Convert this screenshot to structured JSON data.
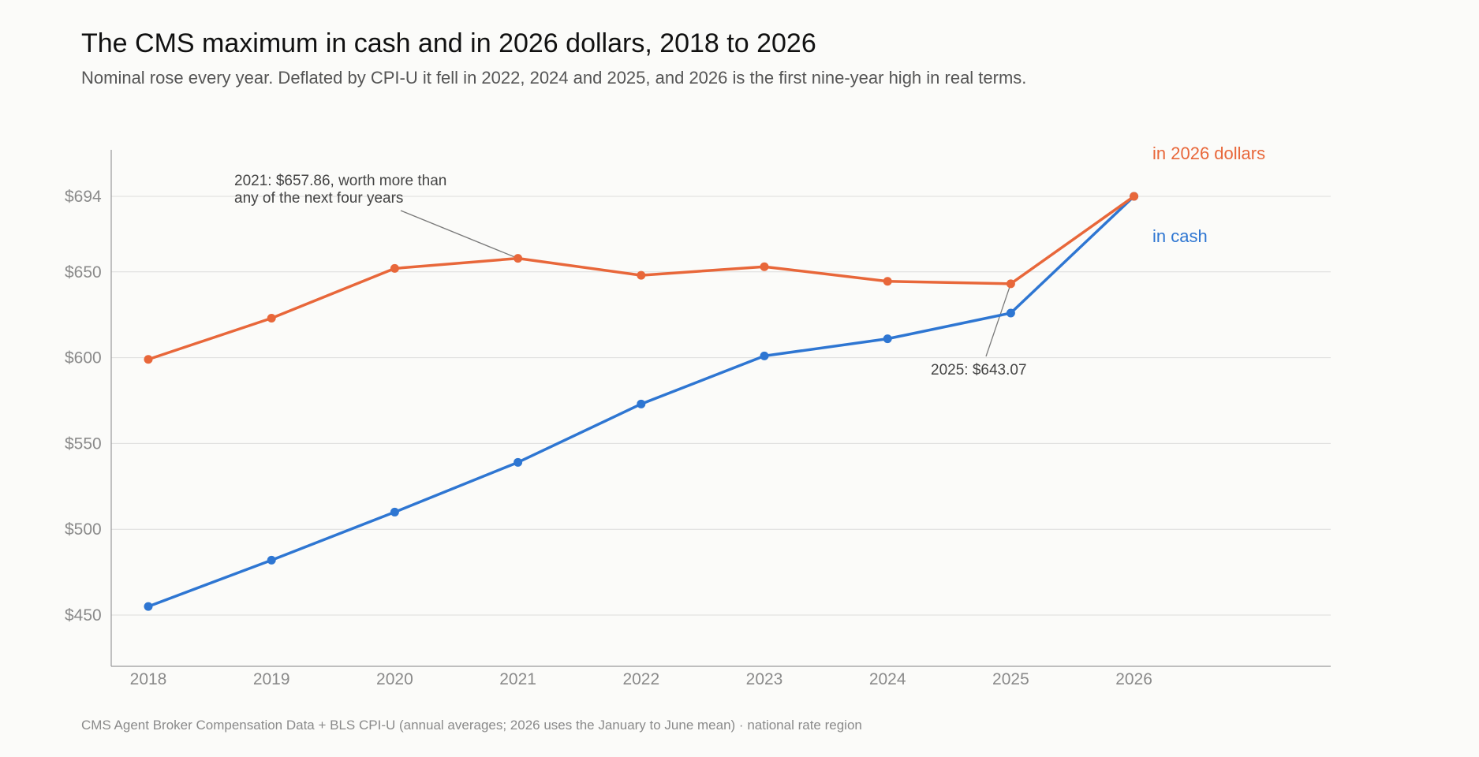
{
  "header": {
    "title": "The CMS maximum in cash and in 2026 dollars, 2018 to 2026",
    "subtitle": "Nominal rose every year. Deflated by CPI-U it fell in 2022, 2024 and 2025, and 2026 is the first nine-year high in real terms."
  },
  "footer": {
    "source": "CMS Agent Broker Compensation Data + BLS CPI-U (annual averages; 2026 uses the January to June mean) · national rate region"
  },
  "chart_data": {
    "type": "line",
    "categories": [
      "2018",
      "2019",
      "2020",
      "2021",
      "2022",
      "2023",
      "2024",
      "2025",
      "2026"
    ],
    "series": [
      {
        "name": "in 2026 dollars",
        "color": "#e8673a",
        "values": [
          599,
          623,
          652,
          657.86,
          648,
          653,
          644.5,
          643.07,
          694
        ]
      },
      {
        "name": "in cash",
        "color": "#2e76d2",
        "values": [
          455,
          482,
          510,
          539,
          573,
          601,
          611,
          626,
          694
        ]
      }
    ],
    "ylim": [
      420,
      720
    ],
    "yticks": [
      450,
      500,
      550,
      600,
      650,
      694
    ],
    "ytick_labels": [
      "$450",
      "$500",
      "$550",
      "$600",
      "$650",
      "$694"
    ],
    "grid": true,
    "legend": "direct labels at right end of lines",
    "annotations": [
      {
        "text_lines": [
          "2021: $657.86, worth more than",
          "any of the next four years"
        ],
        "series": 0,
        "index": 3
      },
      {
        "text_lines": [
          "2025: $643.07"
        ],
        "series": 0,
        "index": 7
      }
    ]
  }
}
